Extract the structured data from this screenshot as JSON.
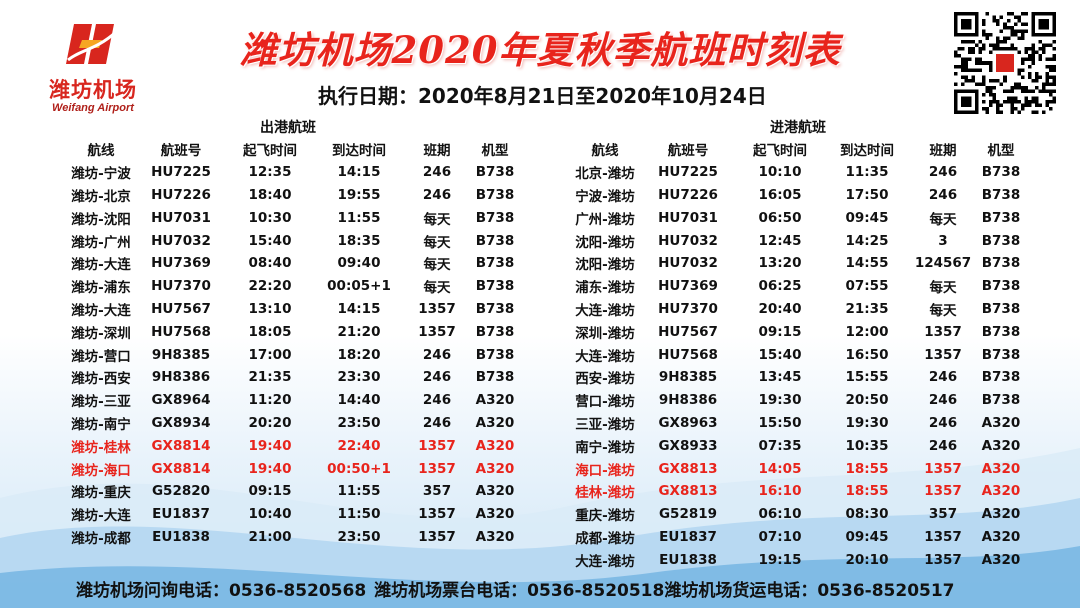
{
  "logo": {
    "name": "潍坊机场",
    "sub": "Weifang Airport",
    "brand_color": "#d8261e"
  },
  "title": "潍坊机场2020年夏秋季航班时刻表",
  "exec_date": "执行日期：2020年8月21日至2020年10月24日",
  "highlight_color": "#e8241c",
  "departures": {
    "title": "出港航班",
    "headers": [
      "航线",
      "航班号",
      "起飞时间",
      "到达时间",
      "班期",
      "机型"
    ],
    "rows": [
      [
        "潍坊-宁波",
        "HU7225",
        "12:35",
        "14:15",
        "246",
        "B738"
      ],
      [
        "潍坊-北京",
        "HU7226",
        "18:40",
        "19:55",
        "246",
        "B738"
      ],
      [
        "潍坊-沈阳",
        "HU7031",
        "10:30",
        "11:55",
        "每天",
        "B738"
      ],
      [
        "潍坊-广州",
        "HU7032",
        "15:40",
        "18:35",
        "每天",
        "B738"
      ],
      [
        "潍坊-大连",
        "HU7369",
        "08:40",
        "09:40",
        "每天",
        "B738"
      ],
      [
        "潍坊-浦东",
        "HU7370",
        "22:20",
        "00:05+1",
        "每天",
        "B738"
      ],
      [
        "潍坊-大连",
        "HU7567",
        "13:10",
        "14:15",
        "1357",
        "B738"
      ],
      [
        "潍坊-深圳",
        "HU7568",
        "18:05",
        "21:20",
        "1357",
        "B738"
      ],
      [
        "潍坊-营口",
        "9H8385",
        "17:00",
        "18:20",
        "246",
        "B738"
      ],
      [
        "潍坊-西安",
        "9H8386",
        "21:35",
        "23:30",
        "246",
        "B738"
      ],
      [
        "潍坊-三亚",
        "GX8964",
        "11:20",
        "14:40",
        "246",
        "A320"
      ],
      [
        "潍坊-南宁",
        "GX8934",
        "20:20",
        "23:50",
        "246",
        "A320"
      ],
      [
        "潍坊-桂林",
        "GX8814",
        "19:40",
        "22:40",
        "1357",
        "A320"
      ],
      [
        "潍坊-海口",
        "GX8814",
        "19:40",
        "00:50+1",
        "1357",
        "A320"
      ],
      [
        "潍坊-重庆",
        "G52820",
        "09:15",
        "11:55",
        "357",
        "A320"
      ],
      [
        "潍坊-大连",
        "EU1837",
        "10:40",
        "11:50",
        "1357",
        "A320"
      ],
      [
        "潍坊-成都",
        "EU1838",
        "21:00",
        "23:50",
        "1357",
        "A320"
      ]
    ],
    "highlight_rows": [
      12,
      13
    ]
  },
  "arrivals": {
    "title": "进港航班",
    "headers": [
      "航线",
      "航班号",
      "起飞时间",
      "到达时间",
      "班期",
      "机型"
    ],
    "rows": [
      [
        "北京-潍坊",
        "HU7225",
        "10:10",
        "11:35",
        "246",
        "B738"
      ],
      [
        "宁波-潍坊",
        "HU7226",
        "16:05",
        "17:50",
        "246",
        "B738"
      ],
      [
        "广州-潍坊",
        "HU7031",
        "06:50",
        "09:45",
        "每天",
        "B738"
      ],
      [
        "沈阳-潍坊",
        "HU7032",
        "12:45",
        "14:25",
        "3",
        "B738"
      ],
      [
        "沈阳-潍坊",
        "HU7032",
        "13:20",
        "14:55",
        "124567",
        "B738"
      ],
      [
        "浦东-潍坊",
        "HU7369",
        "06:25",
        "07:55",
        "每天",
        "B738"
      ],
      [
        "大连-潍坊",
        "HU7370",
        "20:40",
        "21:35",
        "每天",
        "B738"
      ],
      [
        "深圳-潍坊",
        "HU7567",
        "09:15",
        "12:00",
        "1357",
        "B738"
      ],
      [
        "大连-潍坊",
        "HU7568",
        "15:40",
        "16:50",
        "1357",
        "B738"
      ],
      [
        "西安-潍坊",
        "9H8385",
        "13:45",
        "15:55",
        "246",
        "B738"
      ],
      [
        "营口-潍坊",
        "9H8386",
        "19:30",
        "20:50",
        "246",
        "B738"
      ],
      [
        "三亚-潍坊",
        "GX8963",
        "15:50",
        "19:30",
        "246",
        "A320"
      ],
      [
        "南宁-潍坊",
        "GX8933",
        "07:35",
        "10:35",
        "246",
        "A320"
      ],
      [
        "海口-潍坊",
        "GX8813",
        "14:05",
        "18:55",
        "1357",
        "A320"
      ],
      [
        "桂林-潍坊",
        "GX8813",
        "16:10",
        "18:55",
        "1357",
        "A320"
      ],
      [
        "重庆-潍坊",
        "G52819",
        "06:10",
        "08:30",
        "357",
        "A320"
      ],
      [
        "成都-潍坊",
        "EU1837",
        "07:10",
        "09:45",
        "1357",
        "A320"
      ],
      [
        "大连-潍坊",
        "EU1838",
        "19:15",
        "20:10",
        "1357",
        "A320"
      ]
    ],
    "highlight_rows": [
      13,
      14
    ]
  },
  "footer": {
    "inquiry": "潍坊机场问询电话：0536-8520568",
    "ticket": "潍坊机场票台电话：0536-8520518",
    "cargo": "潍坊机场货运电话：0536-8520517"
  }
}
